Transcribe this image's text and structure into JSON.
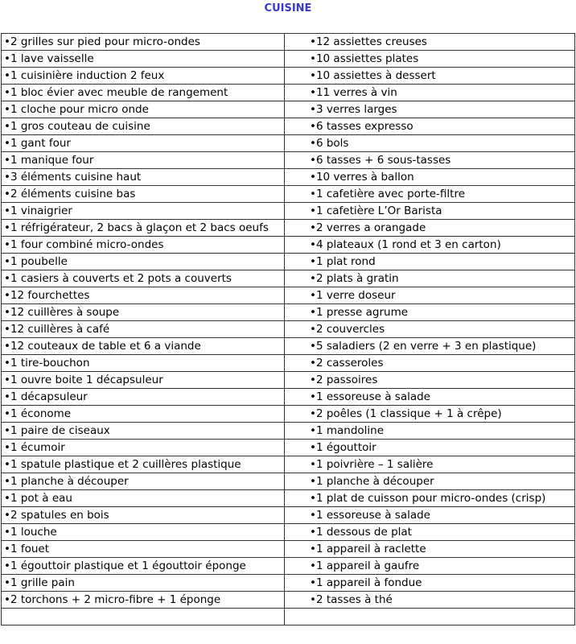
{
  "title": "CUISINE",
  "bullet": "•",
  "rows": [
    [
      "•2 grilles sur pied pour micro-ondes",
      "•12 assiettes creuses"
    ],
    [
      "•1 lave vaisselle",
      "•10 assiettes plates"
    ],
    [
      "•1 cuisinière induction 2 feux",
      "•10 assiettes à dessert"
    ],
    [
      "•1 bloc évier avec meuble de rangement",
      "•11 verres à vin"
    ],
    [
      "•1 cloche pour micro onde",
      "•3 verres larges"
    ],
    [
      "•1  gros couteau de cuisine",
      "•6 tasses expresso"
    ],
    [
      "•1  gant four",
      "•6 bols"
    ],
    [
      "•1  manique four",
      "•6 tasses + 6 sous-tasses"
    ],
    [
      "•3 éléments cuisine haut",
      "•10 verres à ballon"
    ],
    [
      "•2 éléments cuisine bas",
      "•1 cafetière avec porte-filtre"
    ],
    [
      "•1 vinaigrier",
      "•1 cafetière L’Or Barista"
    ],
    [
      "•1 réfrigérateur, 2 bacs à glaçon et 2 bacs oeufs",
      "•2 verres a orangade"
    ],
    [
      "•1 four combiné micro-ondes",
      "•4 plateaux (1 rond et 3 en carton)"
    ],
    [
      "•1 poubelle",
      "•1 plat rond"
    ],
    [
      "•1 casiers à couverts et 2 pots a couverts",
      "•2 plats à gratin"
    ],
    [
      "•12 fourchettes",
      "•1 verre doseur"
    ],
    [
      "•12 cuillères à soupe",
      "•1 presse agrume"
    ],
    [
      "•12 cuillères à café",
      "•2 couvercles"
    ],
    [
      "•12 couteaux de table et 6 a viande",
      "•5 saladiers (2 en verre + 3 en plastique)"
    ],
    [
      "•1 tire-bouchon",
      "•2 casseroles"
    ],
    [
      "•1 ouvre boite 1 décapsuleur",
      "•2 passoires"
    ],
    [
      "•1 décapsuleur",
      "•1 essoreuse à salade"
    ],
    [
      "•1 économe",
      "•2 poêles (1 classique + 1 à crêpe)"
    ],
    [
      "•1 paire de ciseaux",
      "•1 mandoline"
    ],
    [
      "•1 écumoir",
      "•1 égouttoir"
    ],
    [
      "•1  spatule plastique et 2 cuillères plastique",
      "•1 poivrière – 1 salière"
    ],
    [
      "•1 planche à découper",
      "•1 planche à découper"
    ],
    [
      "•1 pot à eau",
      "•1 plat de cuisson pour micro-ondes (crisp)"
    ],
    [
      "•2 spatules en bois",
      "•1 essoreuse à salade"
    ],
    [
      "•1 louche",
      "•1 dessous de plat"
    ],
    [
      "•1 fouet",
      "•1 appareil à raclette"
    ],
    [
      "•1 égouttoir plastique et 1 égouttoir éponge",
      "•1 appareil à gaufre"
    ],
    [
      "•1 grille pain",
      "•1 appareil à fondue"
    ],
    [
      "•2 torchons + 2 micro-fibre + 1 éponge",
      "•2 tasses à thé"
    ],
    [
      "",
      ""
    ]
  ]
}
